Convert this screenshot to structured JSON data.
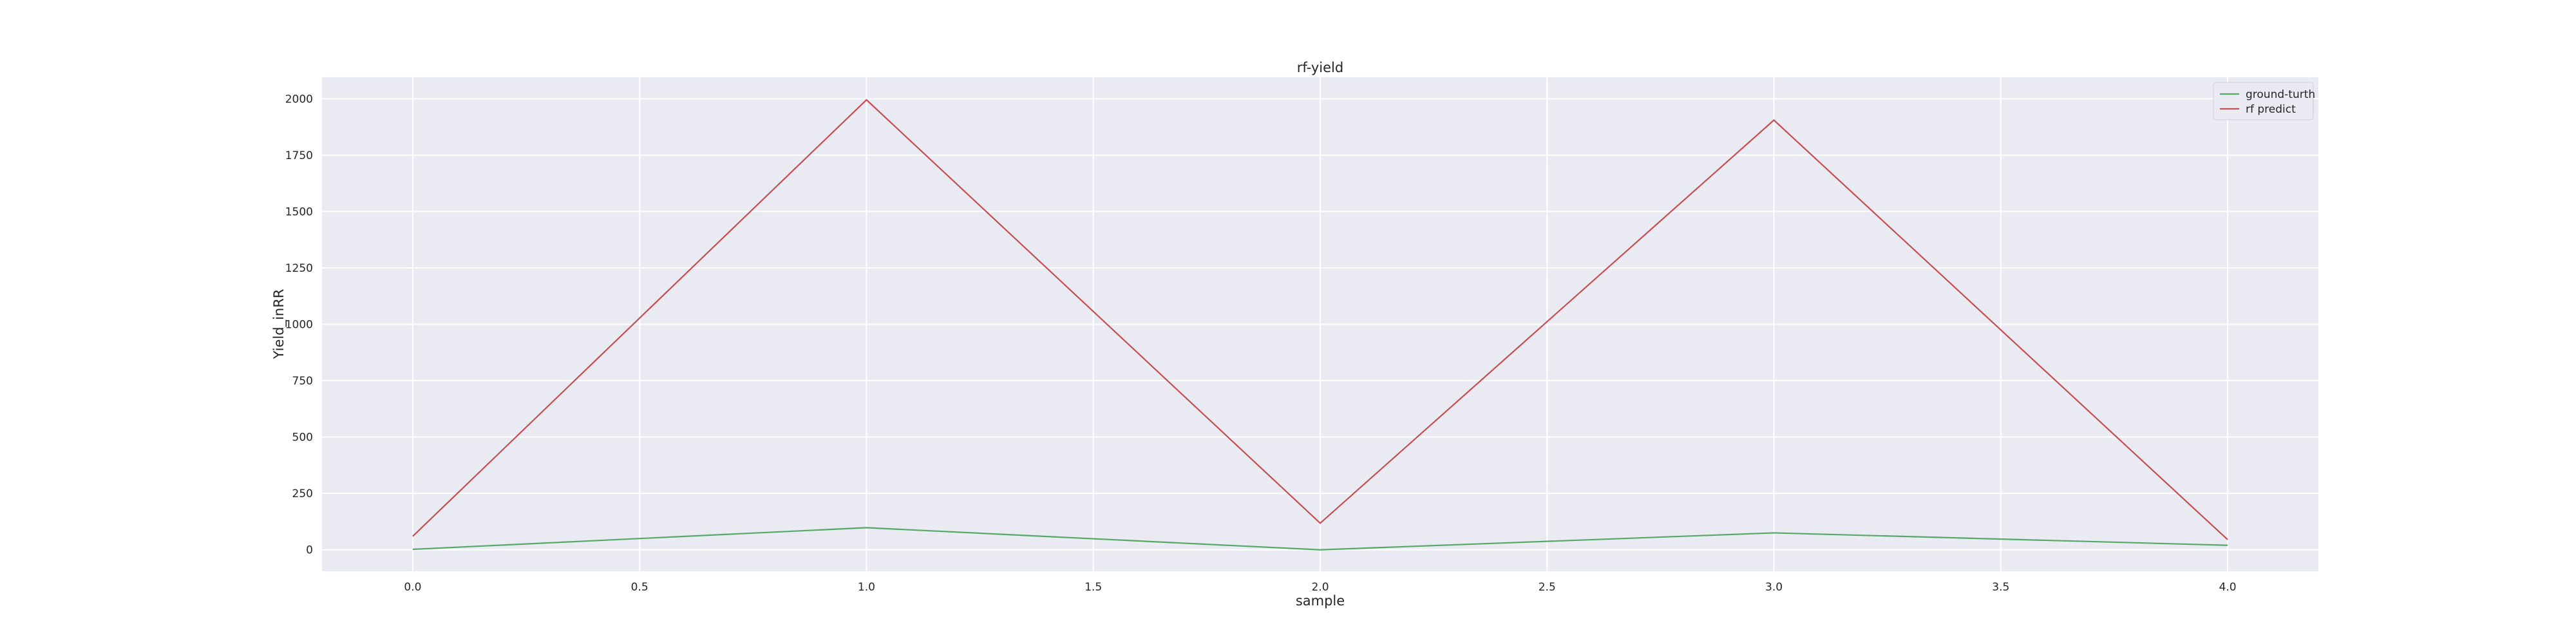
{
  "chart_data": {
    "type": "line",
    "title": "rf-yield",
    "xlabel": "sample",
    "ylabel": "Yield_inRR",
    "x": [
      0,
      1,
      2,
      3,
      4
    ],
    "series": [
      {
        "name": "ground-turth",
        "color": "#55a868",
        "values": [
          2,
          98,
          0,
          75,
          20
        ]
      },
      {
        "name": "rf predict",
        "color": "#c44e52",
        "values": [
          60,
          1995,
          118,
          1905,
          45
        ]
      }
    ],
    "xticks": [
      "0.0",
      "0.5",
      "1.0",
      "1.5",
      "2.0",
      "2.5",
      "3.0",
      "3.5",
      "4.0"
    ],
    "yticks": [
      "0",
      "250",
      "500",
      "750",
      "1000",
      "1250",
      "1500",
      "1750",
      "2000"
    ],
    "xlim": [
      -0.2,
      4.2
    ],
    "ylim": [
      -95,
      2095
    ],
    "grid": true,
    "legend_position": "top-right",
    "background_color": "#eaeaf2"
  }
}
